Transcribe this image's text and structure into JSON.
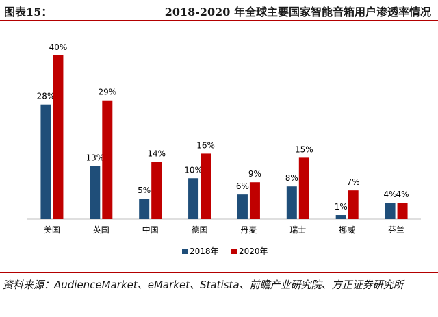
{
  "header": {
    "figure_number": "图表15：",
    "title": "2018-2020 年全球主要国家智能音箱用户渗透率情况"
  },
  "source_note": "资料来源：AudienceMarket、eMarket、Statista、前瞻产业研究院、方正证券研究所",
  "colors": {
    "rule": "#b30000",
    "series_2018": "#1f4e79",
    "series_2020": "#c00000"
  },
  "chart_data": {
    "type": "bar",
    "categories": [
      "美国",
      "英国",
      "中国",
      "德国",
      "丹麦",
      "瑞士",
      "挪威",
      "芬兰"
    ],
    "series": [
      {
        "name": "2018年",
        "values": [
          28,
          13,
          5,
          10,
          6,
          8,
          1,
          4
        ],
        "labels": [
          "28%",
          "13%",
          "5%",
          "10%",
          "6%",
          "8%",
          "1%",
          "4%"
        ],
        "color": "#1f4e79"
      },
      {
        "name": "2020年",
        "values": [
          40,
          29,
          14,
          16,
          9,
          15,
          7,
          4
        ],
        "labels": [
          "40%",
          "29%",
          "14%",
          "16%",
          "9%",
          "15%",
          "7%",
          "4%"
        ],
        "color": "#c00000"
      }
    ],
    "ylim": [
      0,
      40
    ],
    "grid": false,
    "legend_position": "bottom"
  }
}
